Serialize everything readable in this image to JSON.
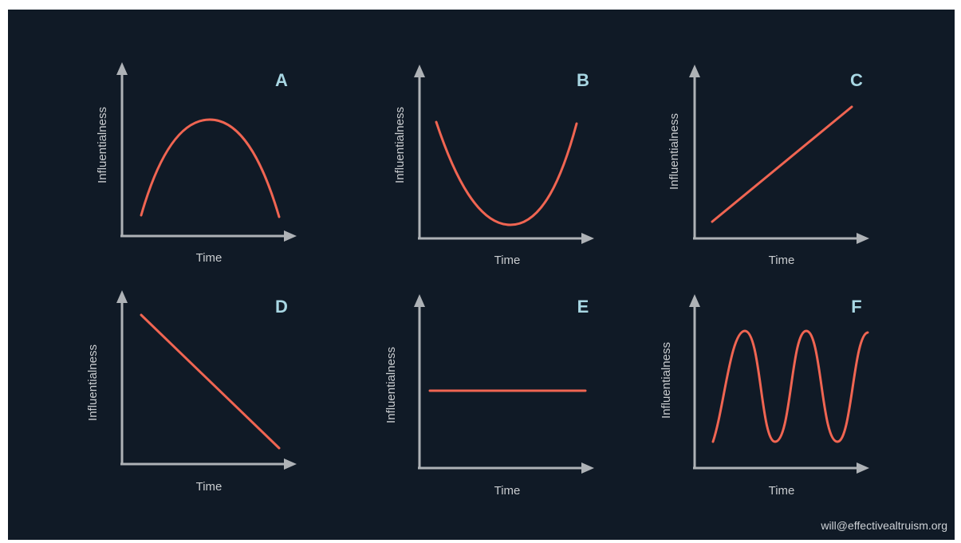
{
  "colors": {
    "background": "#101a26",
    "axis": "#aeb2b6",
    "curve": "#f06552",
    "panel_letter": "#a8d7e3",
    "text": "#c9cccf"
  },
  "panels": [
    {
      "letter": "A",
      "xlabel": "Time",
      "ylabel": "Influentialness",
      "shape": "inverted-u"
    },
    {
      "letter": "B",
      "xlabel": "Time",
      "ylabel": "Influentialness",
      "shape": "u"
    },
    {
      "letter": "C",
      "xlabel": "Time",
      "ylabel": "Influentialness",
      "shape": "increasing-line"
    },
    {
      "letter": "D",
      "xlabel": "Time",
      "ylabel": "Influentialness",
      "shape": "decreasing-line"
    },
    {
      "letter": "E",
      "xlabel": "Time",
      "ylabel": "Influentialness",
      "shape": "flat-line"
    },
    {
      "letter": "F",
      "xlabel": "Time",
      "ylabel": "Influentialness",
      "shape": "oscillating"
    }
  ],
  "footer": {
    "email": "will@effectivealtruism.org"
  }
}
